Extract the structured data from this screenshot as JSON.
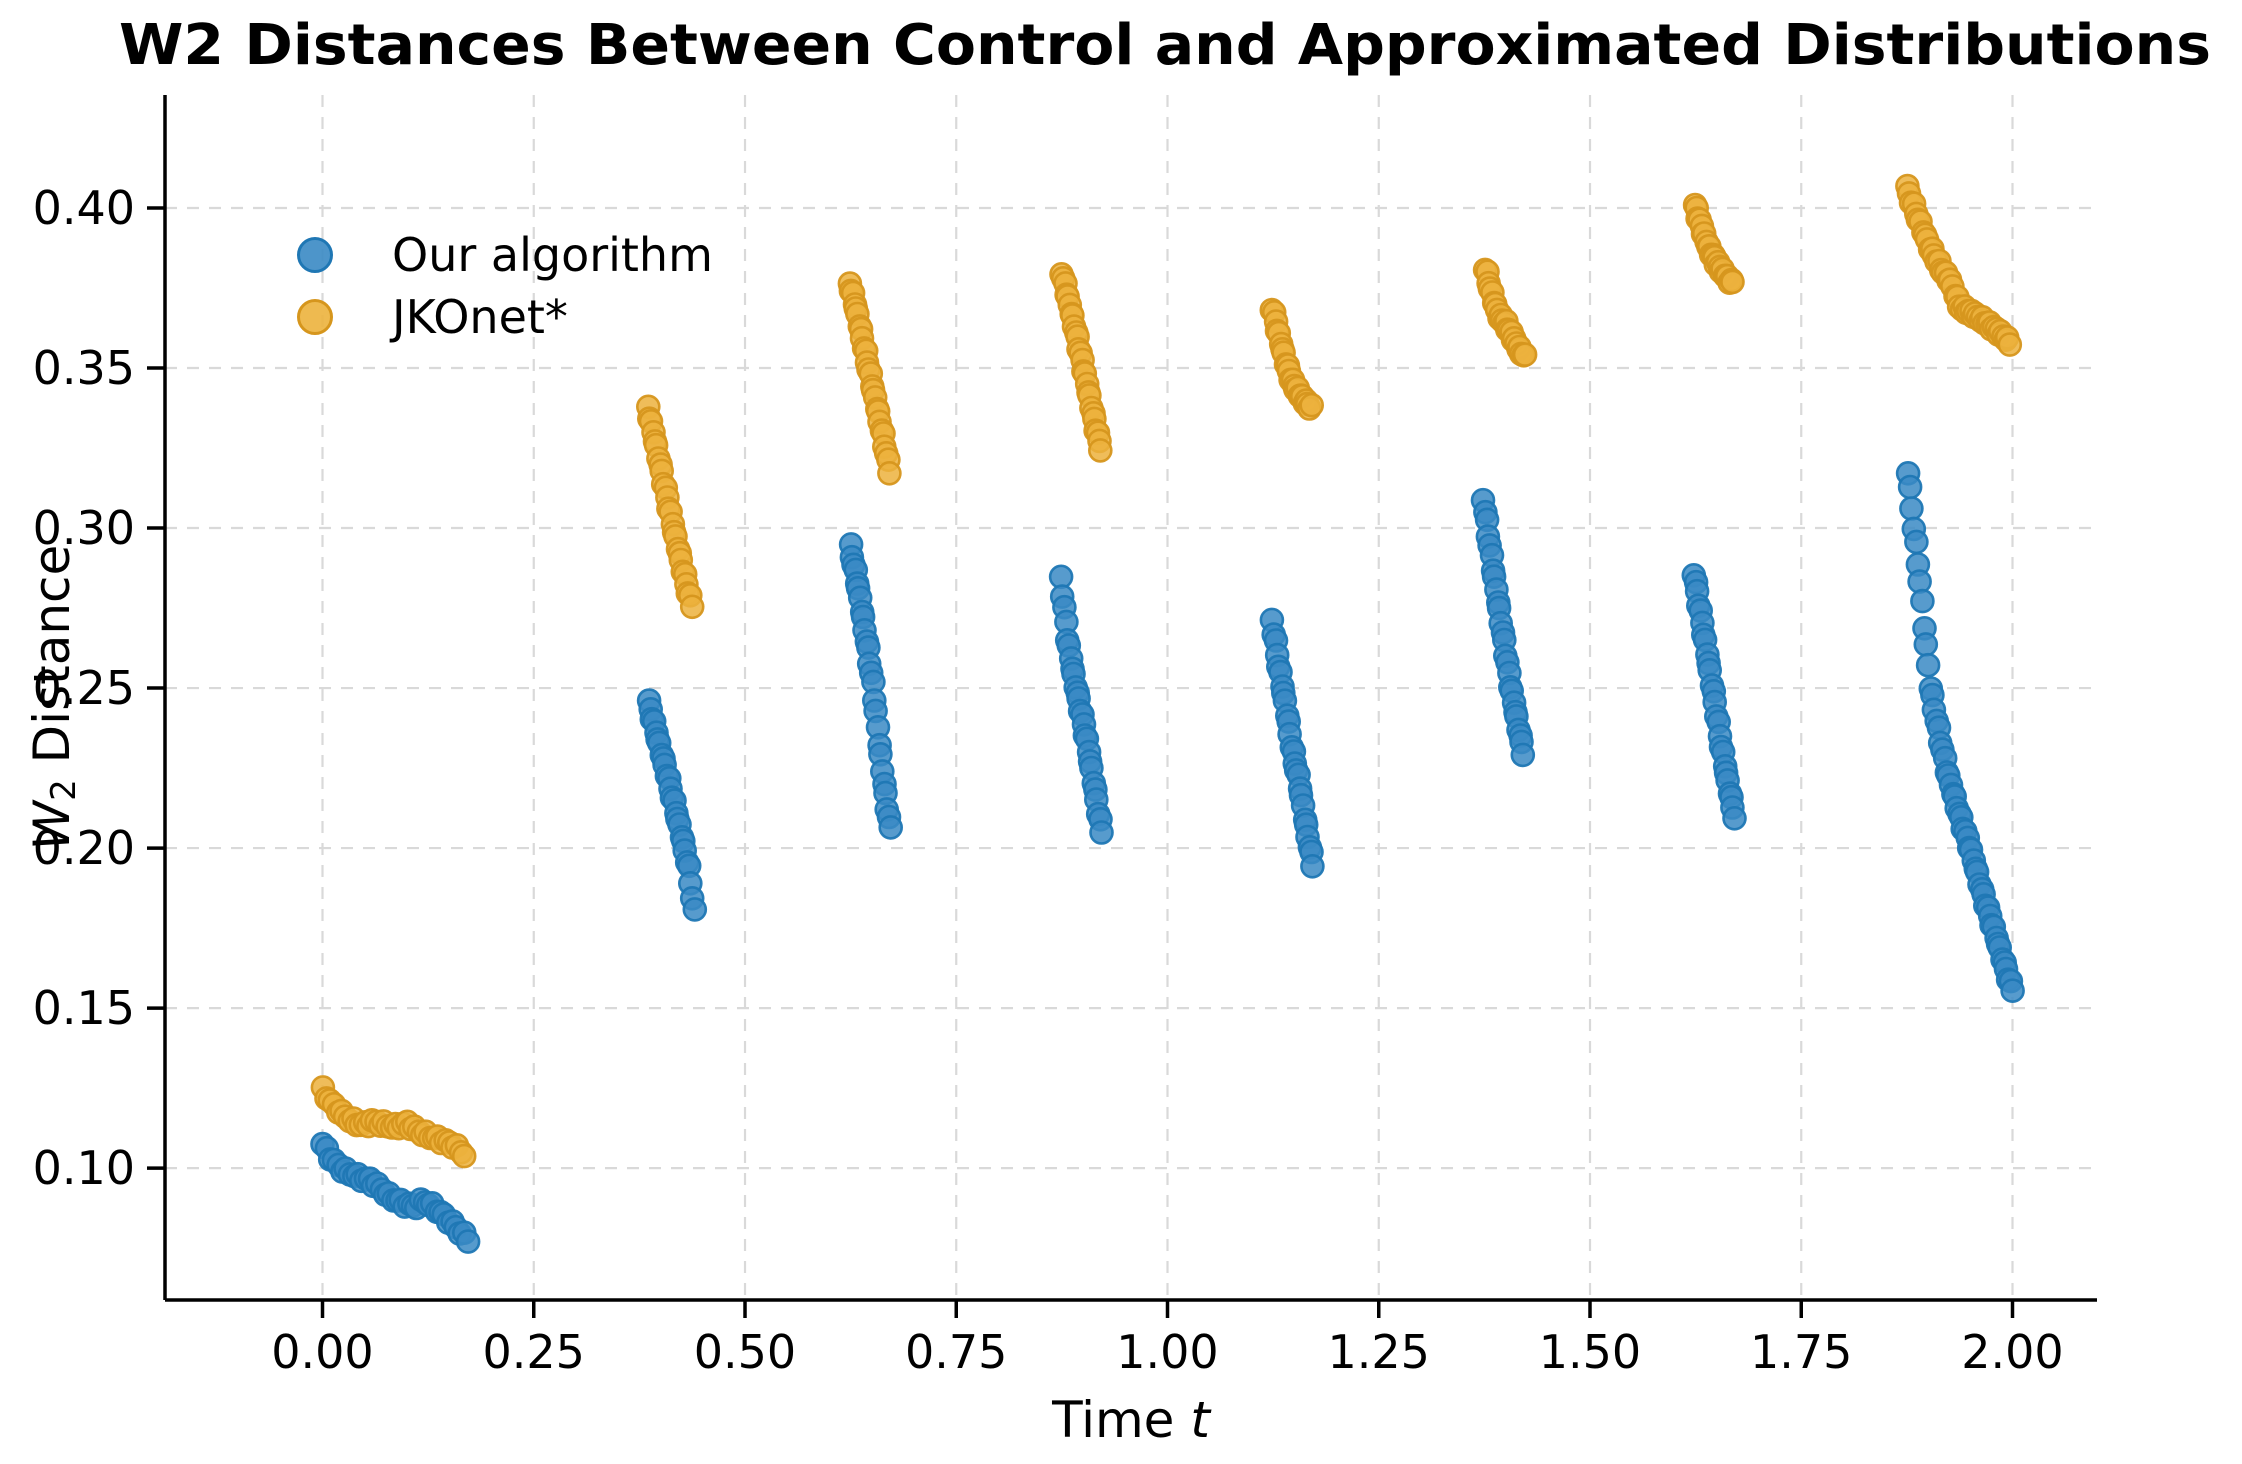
{
  "title": "W2 Distances Between Control and Approximated Distributions",
  "chart_data": {
    "type": "scatter",
    "title": "W2 Distances Between Control and Approximated Distributions",
    "xlabel": {
      "text": "Time ",
      "italic": "t"
    },
    "ylabel": {
      "italic": "W",
      "sub": "2",
      "rest": " Distance"
    },
    "xlim": [
      -0.1864,
      2.1
    ],
    "ylim": [
      0.0588,
      0.4353
    ],
    "xticks": {
      "values": [
        0.0,
        0.25,
        0.5,
        0.75,
        1.0,
        1.25,
        1.5,
        1.75,
        2.0
      ],
      "labels": [
        "0.00",
        "0.25",
        "0.50",
        "0.75",
        "1.00",
        "1.25",
        "1.50",
        "1.75",
        "2.00"
      ]
    },
    "yticks": {
      "values": [
        0.1,
        0.15,
        0.2,
        0.25,
        0.3,
        0.35,
        0.4
      ],
      "labels": [
        "0.10",
        "0.15",
        "0.20",
        "0.25",
        "0.30",
        "0.35",
        "0.40"
      ]
    },
    "grid": {
      "show": true,
      "color": "#d9d9d9",
      "dash": [
        12,
        10
      ]
    },
    "legend": {
      "position": "upper-left",
      "entries": [
        {
          "label": "Our algorithm",
          "series": 0
        },
        {
          "label": "JKOnet*",
          "series": 1
        }
      ]
    },
    "series": [
      {
        "name": "Our algorithm",
        "fill": "#3a8ac4",
        "edge": "#1f77b4",
        "marker_radius": 11,
        "segments": [
          {
            "n": 38,
            "anchors": [
              [
                0.0,
                0.1075
              ],
              [
                0.012,
                0.1025
              ],
              [
                0.024,
                0.0995
              ],
              [
                0.044,
                0.097
              ],
              [
                0.056,
                0.0962
              ],
              [
                0.064,
                0.0947
              ],
              [
                0.08,
                0.091
              ],
              [
                0.095,
                0.0891
              ],
              [
                0.109,
                0.0878
              ],
              [
                0.119,
                0.0899
              ],
              [
                0.129,
                0.0884
              ],
              [
                0.143,
                0.0853
              ],
              [
                0.159,
                0.0813
              ],
              [
                0.172,
                0.0776
              ]
            ]
          },
          {
            "n": 26,
            "anchors": [
              [
                0.386,
                0.2455
              ],
              [
                0.398,
                0.233
              ],
              [
                0.408,
                0.223
              ],
              [
                0.418,
                0.212
              ],
              [
                0.426,
                0.203
              ],
              [
                0.434,
                0.193
              ],
              [
                0.44,
                0.18
              ]
            ]
          },
          {
            "n": 26,
            "anchors": [
              [
                0.625,
                0.294
              ],
              [
                0.635,
                0.28
              ],
              [
                0.645,
                0.263
              ],
              [
                0.652,
                0.25
              ],
              [
                0.66,
                0.23
              ],
              [
                0.666,
                0.217
              ],
              [
                0.672,
                0.206
              ]
            ]
          },
          {
            "n": 26,
            "anchors": [
              [
                0.874,
                0.284
              ],
              [
                0.882,
                0.265
              ],
              [
                0.89,
                0.2525
              ],
              [
                0.898,
                0.2425
              ],
              [
                0.906,
                0.2315
              ],
              [
                0.914,
                0.2185
              ],
              [
                0.922,
                0.205
              ]
            ]
          },
          {
            "n": 26,
            "anchors": [
              [
                1.124,
                0.271
              ],
              [
                1.132,
                0.2565
              ],
              [
                1.14,
                0.2445
              ],
              [
                1.148,
                0.2305
              ],
              [
                1.156,
                0.2205
              ],
              [
                1.164,
                0.207
              ],
              [
                1.172,
                0.195
              ]
            ]
          },
          {
            "n": 26,
            "anchors": [
              [
                1.374,
                0.309
              ],
              [
                1.382,
                0.2935
              ],
              [
                1.39,
                0.279
              ],
              [
                1.398,
                0.265
              ],
              [
                1.406,
                0.251
              ],
              [
                1.414,
                0.2395
              ],
              [
                1.421,
                0.23
              ]
            ]
          },
          {
            "n": 26,
            "anchors": [
              [
                1.623,
                0.286
              ],
              [
                1.631,
                0.273
              ],
              [
                1.639,
                0.26
              ],
              [
                1.647,
                0.247
              ],
              [
                1.655,
                0.233
              ],
              [
                1.663,
                0.221
              ],
              [
                1.671,
                0.21
              ]
            ]
          },
          {
            "n": 52,
            "anchors": [
              [
                1.876,
                0.318
              ],
              [
                1.883,
                0.301
              ],
              [
                1.89,
                0.285
              ],
              [
                1.896,
                0.268
              ],
              [
                1.903,
                0.25
              ],
              [
                1.913,
                0.236
              ],
              [
                1.923,
                0.2235
              ],
              [
                1.936,
                0.2115
              ],
              [
                1.95,
                0.2
              ],
              [
                1.963,
                0.1875
              ],
              [
                1.977,
                0.1755
              ],
              [
                1.989,
                0.165
              ],
              [
                2.0,
                0.1556
              ]
            ]
          }
        ]
      },
      {
        "name": "JKOnet*",
        "fill": "#ecb23d",
        "edge": "#d6961d",
        "marker_radius": 11,
        "segments": [
          {
            "n": 38,
            "anchors": [
              [
                0.0,
                0.1244
              ],
              [
                0.01,
                0.1205
              ],
              [
                0.021,
                0.1175
              ],
              [
                0.033,
                0.115
              ],
              [
                0.047,
                0.1134
              ],
              [
                0.06,
                0.1145
              ],
              [
                0.072,
                0.1138
              ],
              [
                0.085,
                0.1128
              ],
              [
                0.1,
                0.114
              ],
              [
                0.113,
                0.1115
              ],
              [
                0.127,
                0.11
              ],
              [
                0.14,
                0.1088
              ],
              [
                0.155,
                0.1072
              ],
              [
                0.168,
                0.1042
              ]
            ]
          },
          {
            "n": 26,
            "anchors": [
              [
                0.385,
                0.3375
              ],
              [
                0.393,
                0.328
              ],
              [
                0.401,
                0.318
              ],
              [
                0.409,
                0.308
              ],
              [
                0.417,
                0.298
              ],
              [
                0.425,
                0.289
              ],
              [
                0.433,
                0.28
              ],
              [
                0.437,
                0.276
              ]
            ]
          },
          {
            "n": 26,
            "anchors": [
              [
                0.624,
                0.3766
              ],
              [
                0.632,
                0.368
              ],
              [
                0.64,
                0.358
              ],
              [
                0.648,
                0.348
              ],
              [
                0.656,
                0.338
              ],
              [
                0.664,
                0.328
              ],
              [
                0.671,
                0.318
              ]
            ]
          },
          {
            "n": 26,
            "anchors": [
              [
                0.875,
                0.38
              ],
              [
                0.883,
                0.371
              ],
              [
                0.891,
                0.362
              ],
              [
                0.899,
                0.352
              ],
              [
                0.907,
                0.342
              ],
              [
                0.914,
                0.333
              ],
              [
                0.921,
                0.325
              ]
            ]
          },
          {
            "n": 24,
            "anchors": [
              [
                1.124,
                0.369
              ],
              [
                1.132,
                0.36
              ],
              [
                1.14,
                0.352
              ],
              [
                1.148,
                0.3455
              ],
              [
                1.156,
                0.342
              ],
              [
                1.163,
                0.3395
              ],
              [
                1.17,
                0.3375
              ]
            ]
          },
          {
            "n": 24,
            "anchors": [
              [
                1.376,
                0.3813
              ],
              [
                1.384,
                0.373
              ],
              [
                1.392,
                0.3665
              ],
              [
                1.4,
                0.364
              ],
              [
                1.408,
                0.36
              ],
              [
                1.416,
                0.356
              ],
              [
                1.423,
                0.3534
              ]
            ]
          },
          {
            "n": 24,
            "anchors": [
              [
                1.624,
                0.401
              ],
              [
                1.632,
                0.394
              ],
              [
                1.64,
                0.388
              ],
              [
                1.648,
                0.3838
              ],
              [
                1.656,
                0.3805
              ],
              [
                1.663,
                0.378
              ],
              [
                1.669,
                0.3766
              ]
            ]
          },
          {
            "n": 46,
            "anchors": [
              [
                1.875,
                0.4063
              ],
              [
                1.888,
                0.397
              ],
              [
                1.902,
                0.388
              ],
              [
                1.918,
                0.38
              ],
              [
                1.926,
                0.3775
              ],
              [
                1.938,
                0.369
              ],
              [
                1.953,
                0.367
              ],
              [
                1.97,
                0.364
              ],
              [
                1.985,
                0.361
              ],
              [
                1.997,
                0.358
              ]
            ]
          }
        ]
      }
    ]
  }
}
